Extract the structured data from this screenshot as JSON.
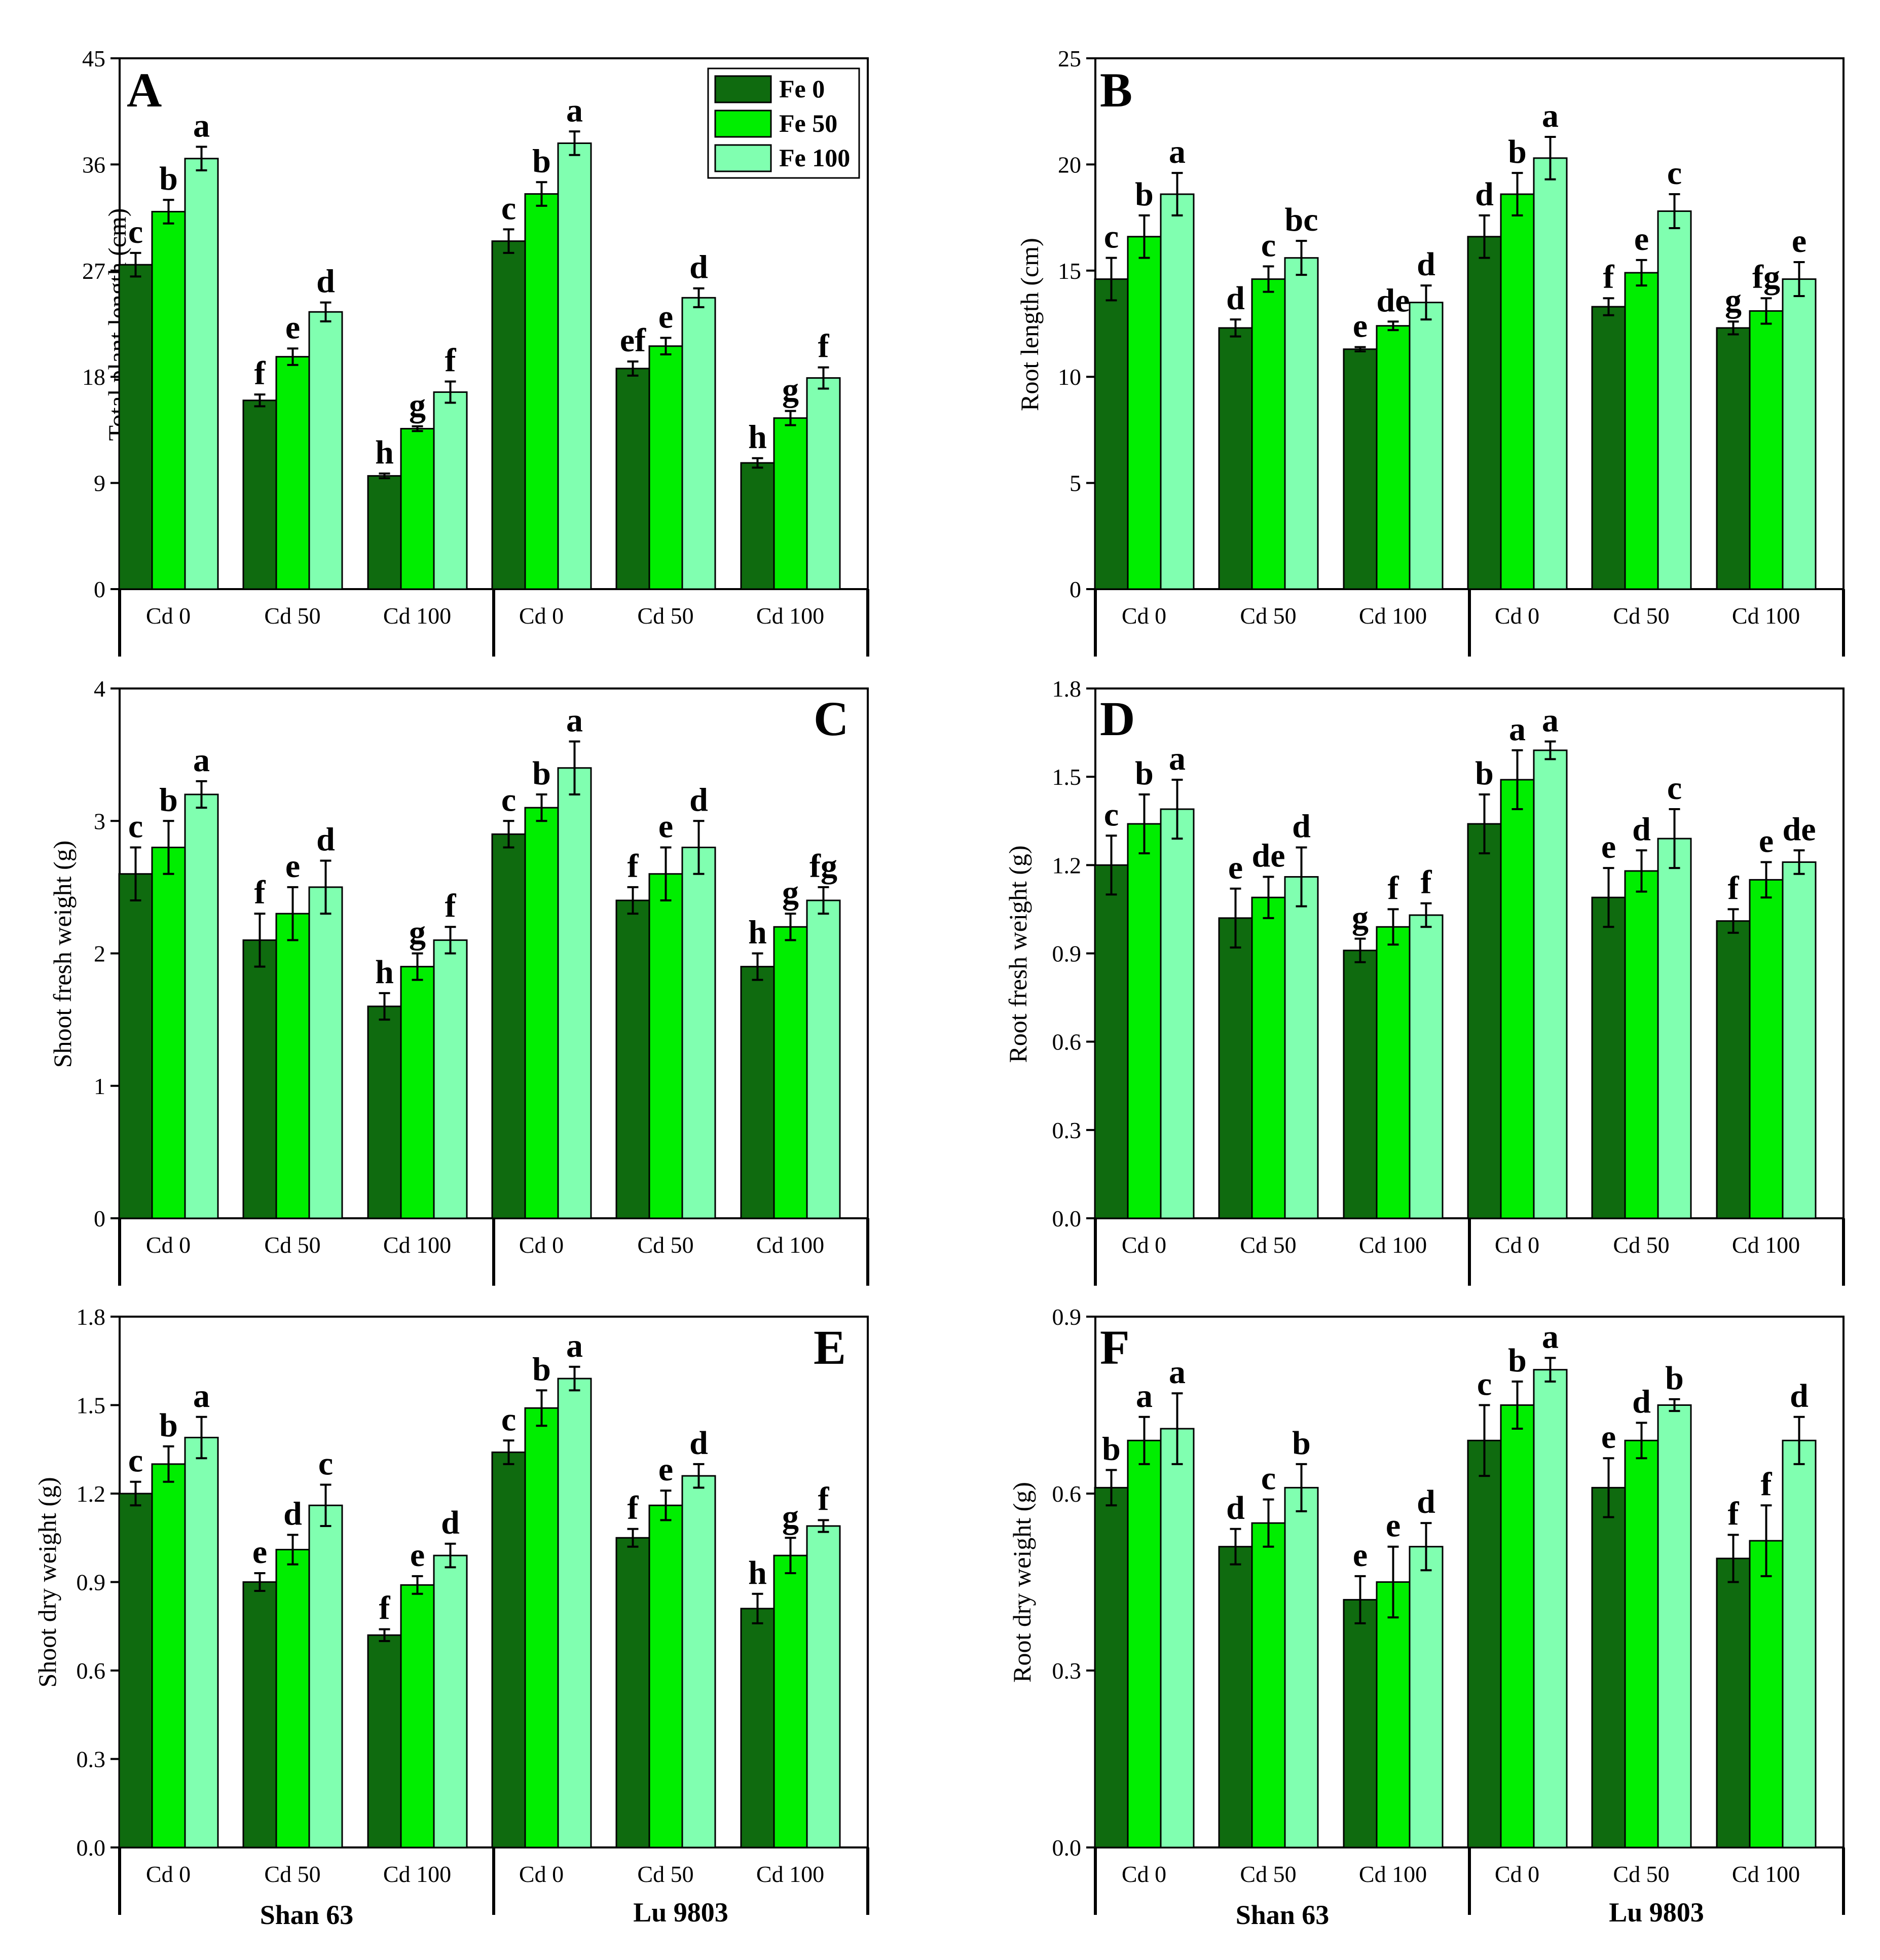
{
  "colors": {
    "Fe 0": "#0f6b0f",
    "Fe 50": "#00ee00",
    "Fe 100": "#80ffb0"
  },
  "legend": [
    "Fe 0",
    "Fe 50",
    "Fe 100"
  ],
  "cultivars": [
    "Shan 63",
    "Lu 9803"
  ],
  "chart_data": [
    {
      "type": "bar",
      "panel": "A",
      "ylabel": "Total plant length (cm)",
      "ylim": [
        0,
        45
      ],
      "yticks": [
        "0",
        "9",
        "18",
        "27",
        "36",
        "45"
      ],
      "categories": [
        "Cd 0",
        "Cd 50",
        "Cd 100",
        "Cd 0",
        "Cd 50",
        "Cd 100"
      ],
      "series": [
        {
          "name": "Fe 0",
          "values": [
            27.5,
            16.0,
            9.6,
            29.5,
            18.7,
            10.7
          ],
          "errors": [
            1.0,
            0.5,
            0.2,
            1.0,
            0.6,
            0.4
          ],
          "letters": [
            "c",
            "f",
            "h",
            "c",
            "ef",
            "h"
          ]
        },
        {
          "name": "Fe 50",
          "values": [
            32.0,
            19.7,
            13.6,
            33.5,
            20.6,
            14.5
          ],
          "errors": [
            1.0,
            0.7,
            0.2,
            1.0,
            0.7,
            0.6
          ],
          "letters": [
            "b",
            "e",
            "g",
            "b",
            "e",
            "g"
          ]
        },
        {
          "name": "Fe 100",
          "values": [
            36.5,
            23.5,
            16.7,
            37.8,
            24.7,
            17.9
          ],
          "errors": [
            1.0,
            0.8,
            0.9,
            1.0,
            0.8,
            0.9
          ],
          "letters": [
            "a",
            "d",
            "f",
            "a",
            "d",
            "f"
          ]
        }
      ]
    },
    {
      "type": "bar",
      "panel": "B",
      "ylabel": "Root length (cm)",
      "ylim": [
        0,
        25
      ],
      "yticks": [
        "0",
        "5",
        "10",
        "15",
        "20",
        "25"
      ],
      "categories": [
        "Cd 0",
        "Cd 50",
        "Cd 100",
        "Cd 0",
        "Cd 50",
        "Cd 100"
      ],
      "series": [
        {
          "name": "Fe 0",
          "values": [
            14.6,
            12.3,
            11.3,
            16.6,
            13.3,
            12.3
          ],
          "errors": [
            1.0,
            0.4,
            0.1,
            1.0,
            0.4,
            0.3
          ],
          "letters": [
            "c",
            "d",
            "e",
            "d",
            "f",
            "g"
          ]
        },
        {
          "name": "Fe 50",
          "values": [
            16.6,
            14.6,
            12.4,
            18.6,
            14.9,
            13.1
          ],
          "errors": [
            1.0,
            0.6,
            0.2,
            1.0,
            0.6,
            0.6
          ],
          "letters": [
            "b",
            "c",
            "de",
            "b",
            "e",
            "fg"
          ]
        },
        {
          "name": "Fe 100",
          "values": [
            18.6,
            15.6,
            13.5,
            20.3,
            17.8,
            14.6
          ],
          "errors": [
            1.0,
            0.8,
            0.8,
            1.0,
            0.8,
            0.8
          ],
          "letters": [
            "a",
            "bc",
            "d",
            "a",
            "c",
            "e"
          ]
        }
      ]
    },
    {
      "type": "bar",
      "panel": "C",
      "ylabel": "Shoot fresh weight (g)",
      "ylim": [
        0,
        4
      ],
      "yticks": [
        "0",
        "1",
        "2",
        "3",
        "4"
      ],
      "categories": [
        "Cd 0",
        "Cd 50",
        "Cd 100",
        "Cd 0",
        "Cd 50",
        "Cd 100"
      ],
      "series": [
        {
          "name": "Fe 0",
          "values": [
            2.6,
            2.1,
            1.6,
            2.9,
            2.4,
            1.9
          ],
          "errors": [
            0.2,
            0.2,
            0.1,
            0.1,
            0.1,
            0.1
          ],
          "letters": [
            "c",
            "f",
            "h",
            "c",
            "f",
            "h"
          ]
        },
        {
          "name": "Fe 50",
          "values": [
            2.8,
            2.3,
            1.9,
            3.1,
            2.6,
            2.2
          ],
          "errors": [
            0.2,
            0.2,
            0.1,
            0.1,
            0.2,
            0.1
          ],
          "letters": [
            "b",
            "e",
            "g",
            "b",
            "e",
            "g"
          ]
        },
        {
          "name": "Fe 100",
          "values": [
            3.2,
            2.5,
            2.1,
            3.4,
            2.8,
            2.4
          ],
          "errors": [
            0.1,
            0.2,
            0.1,
            0.2,
            0.2,
            0.1
          ],
          "letters": [
            "a",
            "d",
            "f",
            "a",
            "d",
            "fg"
          ]
        }
      ]
    },
    {
      "type": "bar",
      "panel": "D",
      "ylabel": "Root fresh weight (g)",
      "ylim": [
        0,
        1.8
      ],
      "yticks": [
        "0.0",
        "0.3",
        "0.6",
        "0.9",
        "1.2",
        "1.5",
        "1.8"
      ],
      "categories": [
        "Cd 0",
        "Cd 50",
        "Cd 100",
        "Cd 0",
        "Cd 50",
        "Cd 100"
      ],
      "series": [
        {
          "name": "Fe 0",
          "values": [
            1.2,
            1.02,
            0.91,
            1.34,
            1.09,
            1.01
          ],
          "errors": [
            0.1,
            0.1,
            0.04,
            0.1,
            0.1,
            0.04
          ],
          "letters": [
            "c",
            "e",
            "g",
            "b",
            "e",
            "f"
          ]
        },
        {
          "name": "Fe 50",
          "values": [
            1.34,
            1.09,
            0.99,
            1.49,
            1.18,
            1.15
          ],
          "errors": [
            0.1,
            0.07,
            0.06,
            0.1,
            0.07,
            0.06
          ],
          "letters": [
            "b",
            "de",
            "f",
            "a",
            "d",
            "e"
          ]
        },
        {
          "name": "Fe 100",
          "values": [
            1.39,
            1.16,
            1.03,
            1.59,
            1.29,
            1.21
          ],
          "errors": [
            0.1,
            0.1,
            0.04,
            0.03,
            0.1,
            0.04
          ],
          "letters": [
            "a",
            "d",
            "f",
            "a",
            "c",
            "de"
          ]
        }
      ]
    },
    {
      "type": "bar",
      "panel": "E",
      "ylabel": "Shoot dry weight (g)",
      "ylim": [
        0,
        1.8
      ],
      "yticks": [
        "0.0",
        "0.3",
        "0.6",
        "0.9",
        "1.2",
        "1.5",
        "1.8"
      ],
      "categories": [
        "Cd 0",
        "Cd 50",
        "Cd 100",
        "Cd 0",
        "Cd 50",
        "Cd 100"
      ],
      "series": [
        {
          "name": "Fe 0",
          "values": [
            1.2,
            0.9,
            0.72,
            1.34,
            1.05,
            0.81
          ],
          "errors": [
            0.04,
            0.03,
            0.02,
            0.04,
            0.03,
            0.05
          ],
          "letters": [
            "c",
            "e",
            "f",
            "c",
            "f",
            "h"
          ]
        },
        {
          "name": "Fe 50",
          "values": [
            1.3,
            1.01,
            0.89,
            1.49,
            1.16,
            0.99
          ],
          "errors": [
            0.06,
            0.05,
            0.03,
            0.06,
            0.05,
            0.06
          ],
          "letters": [
            "b",
            "d",
            "e",
            "b",
            "e",
            "g"
          ]
        },
        {
          "name": "Fe 100",
          "values": [
            1.39,
            1.16,
            0.99,
            1.59,
            1.26,
            1.09
          ],
          "errors": [
            0.07,
            0.07,
            0.04,
            0.04,
            0.04,
            0.02
          ],
          "letters": [
            "a",
            "c",
            "d",
            "a",
            "d",
            "f"
          ]
        }
      ]
    },
    {
      "type": "bar",
      "panel": "F",
      "ylabel": "Root dry weight (g)",
      "ylim": [
        0,
        0.9
      ],
      "yticks": [
        "0.0",
        "0.3",
        "0.6",
        "0.9"
      ],
      "categories": [
        "Cd 0",
        "Cd 50",
        "Cd 100",
        "Cd 0",
        "Cd 50",
        "Cd 100"
      ],
      "series": [
        {
          "name": "Fe 0",
          "values": [
            0.61,
            0.51,
            0.42,
            0.69,
            0.61,
            0.49
          ],
          "errors": [
            0.03,
            0.03,
            0.04,
            0.06,
            0.05,
            0.04
          ],
          "letters": [
            "b",
            "d",
            "e",
            "c",
            "e",
            "f"
          ]
        },
        {
          "name": "Fe 50",
          "values": [
            0.69,
            0.55,
            0.45,
            0.75,
            0.69,
            0.52
          ],
          "errors": [
            0.04,
            0.04,
            0.06,
            0.04,
            0.03,
            0.06
          ],
          "letters": [
            "a",
            "c",
            "e",
            "b",
            "d",
            "f"
          ]
        },
        {
          "name": "Fe 100",
          "values": [
            0.71,
            0.61,
            0.51,
            0.81,
            0.75,
            0.69
          ],
          "errors": [
            0.06,
            0.04,
            0.04,
            0.02,
            0.01,
            0.04
          ],
          "letters": [
            "a",
            "b",
            "d",
            "a",
            "b",
            "d"
          ]
        }
      ]
    }
  ]
}
